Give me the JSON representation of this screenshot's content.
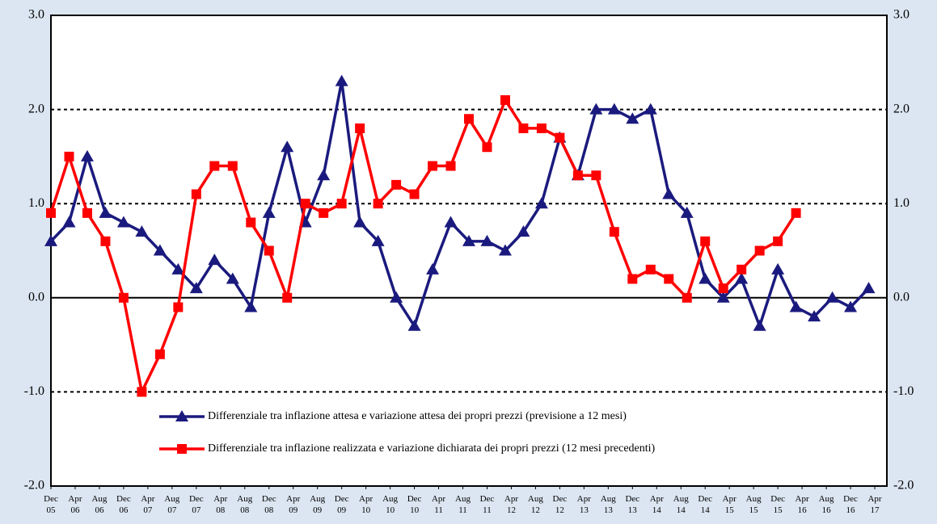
{
  "chart_data": {
    "type": "line",
    "x": [
      0,
      3,
      6,
      9,
      12,
      15,
      18,
      21,
      24,
      27,
      30,
      33,
      36,
      39,
      42,
      45,
      48,
      51,
      54,
      57,
      60,
      63,
      66,
      69,
      72,
      75,
      78,
      81,
      84,
      87,
      90,
      93,
      96,
      99,
      102,
      105,
      108,
      111,
      114,
      117,
      120,
      123,
      126,
      129,
      132,
      135
    ],
    "xlim": [
      0,
      138
    ],
    "xticks": [
      {
        "value": 0,
        "label": "Dec 05"
      },
      {
        "value": 4,
        "label": "Apr 06"
      },
      {
        "value": 8,
        "label": "Aug 06"
      },
      {
        "value": 12,
        "label": "Dec 06"
      },
      {
        "value": 16,
        "label": "Apr 07"
      },
      {
        "value": 20,
        "label": "Aug 07"
      },
      {
        "value": 24,
        "label": "Dec 07"
      },
      {
        "value": 28,
        "label": "Apr 08"
      },
      {
        "value": 32,
        "label": "Aug 08"
      },
      {
        "value": 36,
        "label": "Dec 08"
      },
      {
        "value": 40,
        "label": "Apr 09"
      },
      {
        "value": 44,
        "label": "Aug 09"
      },
      {
        "value": 48,
        "label": "Dec 09"
      },
      {
        "value": 52,
        "label": "Apr 10"
      },
      {
        "value": 56,
        "label": "Aug 10"
      },
      {
        "value": 60,
        "label": "Dec 10"
      },
      {
        "value": 64,
        "label": "Apr 11"
      },
      {
        "value": 68,
        "label": "Aug 11"
      },
      {
        "value": 72,
        "label": "Dec 11"
      },
      {
        "value": 76,
        "label": "Apr 12"
      },
      {
        "value": 80,
        "label": "Aug 12"
      },
      {
        "value": 84,
        "label": "Dec 12"
      },
      {
        "value": 88,
        "label": "Apr 13"
      },
      {
        "value": 92,
        "label": "Aug 13"
      },
      {
        "value": 96,
        "label": "Dec 13"
      },
      {
        "value": 100,
        "label": "Apr 14"
      },
      {
        "value": 104,
        "label": "Aug 14"
      },
      {
        "value": 108,
        "label": "Dec 14"
      },
      {
        "value": 112,
        "label": "Apr 15"
      },
      {
        "value": 116,
        "label": "Aug 15"
      },
      {
        "value": 120,
        "label": "Dec 15"
      },
      {
        "value": 124,
        "label": "Apr 16"
      },
      {
        "value": 128,
        "label": "Aug 16"
      },
      {
        "value": 132,
        "label": "Dec 16"
      },
      {
        "value": 136,
        "label": "Apr 17"
      }
    ],
    "ylim": [
      -2,
      3
    ],
    "yticks": [
      {
        "value": -2,
        "label": "-2.0"
      },
      {
        "value": -1,
        "label": "-1.0"
      },
      {
        "value": 0,
        "label": "0.0"
      },
      {
        "value": 1,
        "label": "1.0"
      },
      {
        "value": 2,
        "label": "2.0"
      },
      {
        "value": 3,
        "label": "3.0"
      }
    ],
    "y2lim": [
      -2,
      3
    ],
    "y2ticks": [
      {
        "value": -2,
        "label": "-2.0"
      },
      {
        "value": -1,
        "label": "-1.0"
      },
      {
        "value": 0,
        "label": "0.0"
      },
      {
        "value": 1,
        "label": "1.0"
      },
      {
        "value": 2,
        "label": "2.0"
      },
      {
        "value": 3,
        "label": "3.0"
      }
    ],
    "grid": true,
    "series": [
      {
        "name": "Differenziale tra inflazione attesa e variazione attesa dei propri prezzi (previsione a 12 mesi)",
        "color": "#1a1a7e",
        "marker": "triangle",
        "values": [
          0.6,
          0.8,
          1.5,
          0.9,
          0.8,
          0.7,
          0.5,
          0.3,
          0.1,
          0.4,
          0.2,
          -0.1,
          0.9,
          1.6,
          0.8,
          1.3,
          2.3,
          0.8,
          0.6,
          0.0,
          -0.3,
          0.3,
          0.8,
          0.6,
          0.6,
          0.5,
          0.7,
          1.0,
          1.7,
          1.3,
          2.0,
          2.0,
          1.9,
          2.0,
          1.1,
          0.9,
          0.2,
          0.0,
          0.2,
          -0.3,
          0.3,
          -0.1,
          -0.2,
          0.0,
          -0.1,
          0.1
        ]
      },
      {
        "name": "Differenziale tra inflazione realizzata e variazione dichiarata dei propri prezzi (12 mesi precedenti)",
        "color": "#ff0000",
        "marker": "square",
        "values": [
          0.9,
          1.5,
          0.9,
          0.6,
          0.0,
          -1.0,
          -0.6,
          -0.1,
          1.1,
          1.4,
          1.4,
          0.8,
          0.5,
          0.0,
          1.0,
          0.9,
          1.0,
          1.8,
          1.0,
          1.2,
          1.1,
          1.4,
          1.4,
          1.9,
          1.6,
          2.1,
          1.8,
          1.8,
          1.7,
          1.3,
          1.3,
          0.7,
          0.2,
          0.3,
          0.2,
          0.0,
          0.6,
          0.1,
          0.3,
          0.5,
          0.6,
          0.9,
          null,
          null,
          null,
          null
        ]
      }
    ]
  }
}
